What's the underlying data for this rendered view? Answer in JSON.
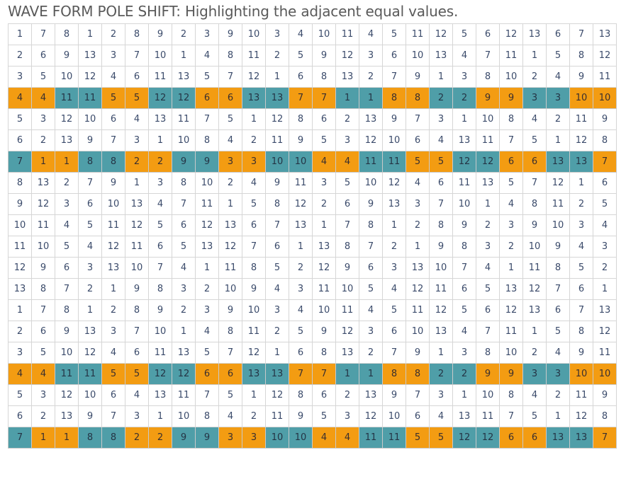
{
  "title": "WAVE FORM POLE SHIFT: Highlighting the adjacent equal values.",
  "colors": {
    "orange": "#f39c12",
    "teal": "#4f9ea8",
    "grid_border": "#d6d6d6",
    "text": "#3a4a6a"
  },
  "rows": [
    {
      "values": [
        1,
        7,
        8,
        1,
        2,
        8,
        9,
        2,
        3,
        9,
        10,
        3,
        4,
        10,
        11,
        4,
        5,
        11,
        12,
        5,
        6,
        12,
        13,
        6,
        7,
        13
      ],
      "highlight": false
    },
    {
      "values": [
        2,
        6,
        9,
        13,
        3,
        7,
        10,
        1,
        4,
        8,
        11,
        2,
        5,
        9,
        12,
        3,
        6,
        10,
        13,
        4,
        7,
        11,
        1,
        5,
        8,
        12
      ],
      "highlight": false
    },
    {
      "values": [
        3,
        5,
        10,
        12,
        4,
        6,
        11,
        13,
        5,
        7,
        12,
        1,
        6,
        8,
        13,
        2,
        7,
        9,
        1,
        3,
        8,
        10,
        2,
        4,
        9,
        11
      ],
      "highlight": false
    },
    {
      "values": [
        4,
        4,
        11,
        11,
        5,
        5,
        12,
        12,
        6,
        6,
        13,
        13,
        7,
        7,
        1,
        1,
        8,
        8,
        2,
        2,
        9,
        9,
        3,
        3,
        10,
        10
      ],
      "highlight": true,
      "pattern": "ob"
    },
    {
      "values": [
        5,
        3,
        12,
        10,
        6,
        4,
        13,
        11,
        7,
        5,
        1,
        12,
        8,
        6,
        2,
        13,
        9,
        7,
        3,
        1,
        10,
        8,
        4,
        2,
        11,
        9
      ],
      "highlight": false
    },
    {
      "values": [
        6,
        2,
        13,
        9,
        7,
        3,
        1,
        10,
        8,
        4,
        2,
        11,
        9,
        5,
        3,
        12,
        10,
        6,
        4,
        13,
        11,
        7,
        5,
        1,
        12,
        8
      ],
      "highlight": false
    },
    {
      "values": [
        7,
        1,
        1,
        8,
        8,
        2,
        2,
        9,
        9,
        3,
        3,
        10,
        10,
        4,
        4,
        11,
        11,
        5,
        5,
        12,
        12,
        6,
        6,
        13,
        13,
        7
      ],
      "highlight": true,
      "pattern": "bo"
    },
    {
      "values": [
        8,
        13,
        2,
        7,
        9,
        1,
        3,
        8,
        10,
        2,
        4,
        9,
        11,
        3,
        5,
        10,
        12,
        4,
        6,
        11,
        13,
        5,
        7,
        12,
        1,
        6
      ],
      "highlight": false
    },
    {
      "values": [
        9,
        12,
        3,
        6,
        10,
        13,
        4,
        7,
        11,
        1,
        5,
        8,
        12,
        2,
        6,
        9,
        13,
        3,
        7,
        10,
        1,
        4,
        8,
        11,
        2,
        5
      ],
      "highlight": false
    },
    {
      "values": [
        10,
        11,
        4,
        5,
        11,
        12,
        5,
        6,
        12,
        13,
        6,
        7,
        13,
        1,
        7,
        8,
        1,
        2,
        8,
        9,
        2,
        3,
        9,
        10,
        3,
        4
      ],
      "highlight": false
    },
    {
      "values": [
        11,
        10,
        5,
        4,
        12,
        11,
        6,
        5,
        13,
        12,
        7,
        6,
        1,
        13,
        8,
        7,
        2,
        1,
        9,
        8,
        3,
        2,
        10,
        9,
        4,
        3
      ],
      "highlight": false
    },
    {
      "values": [
        12,
        9,
        6,
        3,
        13,
        10,
        7,
        4,
        1,
        11,
        8,
        5,
        2,
        12,
        9,
        6,
        3,
        13,
        10,
        7,
        4,
        1,
        11,
        8,
        5,
        2
      ],
      "highlight": false
    },
    {
      "values": [
        13,
        8,
        7,
        2,
        1,
        9,
        8,
        3,
        2,
        10,
        9,
        4,
        3,
        11,
        10,
        5,
        4,
        12,
        11,
        6,
        5,
        13,
        12,
        7,
        6,
        1
      ],
      "highlight": false
    },
    {
      "values": [
        1,
        7,
        8,
        1,
        2,
        8,
        9,
        2,
        3,
        9,
        10,
        3,
        4,
        10,
        11,
        4,
        5,
        11,
        12,
        5,
        6,
        12,
        13,
        6,
        7,
        13
      ],
      "highlight": false
    },
    {
      "values": [
        2,
        6,
        9,
        13,
        3,
        7,
        10,
        1,
        4,
        8,
        11,
        2,
        5,
        9,
        12,
        3,
        6,
        10,
        13,
        4,
        7,
        11,
        1,
        5,
        8,
        12
      ],
      "highlight": false
    },
    {
      "values": [
        3,
        5,
        10,
        12,
        4,
        6,
        11,
        13,
        5,
        7,
        12,
        1,
        6,
        8,
        13,
        2,
        7,
        9,
        1,
        3,
        8,
        10,
        2,
        4,
        9,
        11
      ],
      "highlight": false
    },
    {
      "values": [
        4,
        4,
        11,
        11,
        5,
        5,
        12,
        12,
        6,
        6,
        13,
        13,
        7,
        7,
        1,
        1,
        8,
        8,
        2,
        2,
        9,
        9,
        3,
        3,
        10,
        10
      ],
      "highlight": true,
      "pattern": "ob"
    },
    {
      "values": [
        5,
        3,
        12,
        10,
        6,
        4,
        13,
        11,
        7,
        5,
        1,
        12,
        8,
        6,
        2,
        13,
        9,
        7,
        3,
        1,
        10,
        8,
        4,
        2,
        11,
        9
      ],
      "highlight": false
    },
    {
      "values": [
        6,
        2,
        13,
        9,
        7,
        3,
        1,
        10,
        8,
        4,
        2,
        11,
        9,
        5,
        3,
        12,
        10,
        6,
        4,
        13,
        11,
        7,
        5,
        1,
        12,
        8
      ],
      "highlight": false
    },
    {
      "values": [
        7,
        1,
        1,
        8,
        8,
        2,
        2,
        9,
        9,
        3,
        3,
        10,
        10,
        4,
        4,
        11,
        11,
        5,
        5,
        12,
        12,
        6,
        6,
        13,
        13,
        7
      ],
      "highlight": true,
      "pattern": "bo"
    }
  ]
}
